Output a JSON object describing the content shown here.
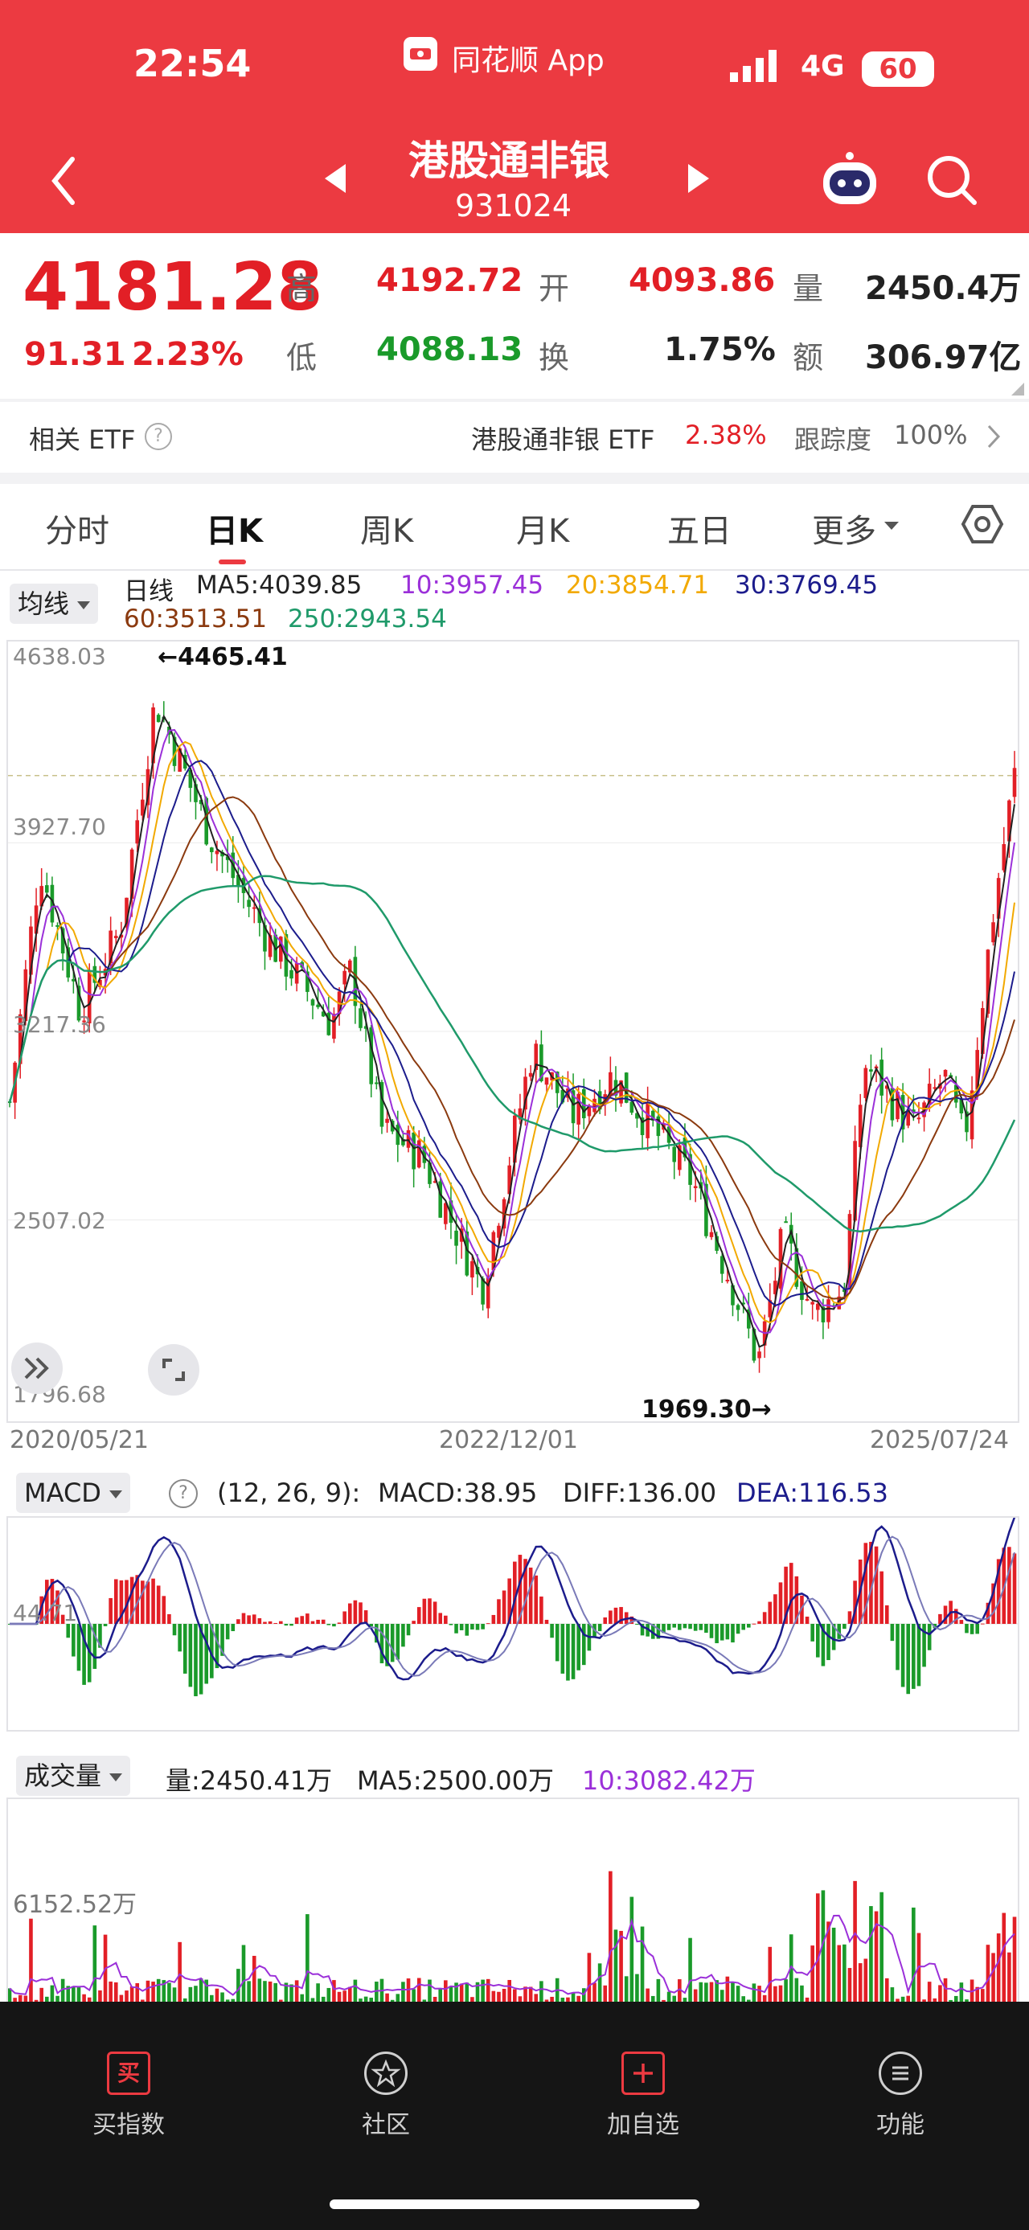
{
  "status_bar": {
    "time": "22:54",
    "app_name": "同花顺 App",
    "network": "4G",
    "battery": "60"
  },
  "header": {
    "title": "港股通非银",
    "code": "931024"
  },
  "quote": {
    "price": "4181.28",
    "change": "91.31",
    "change_pct": "2.23%",
    "high_label": "高",
    "high": "4192.72",
    "open_label": "开",
    "open": "4093.86",
    "volume_label": "量",
    "volume": "2450.4万",
    "low_label": "低",
    "low": "4088.13",
    "turnover_label": "换",
    "turnover": "1.75%",
    "amount_label": "额",
    "amount": "306.97亿"
  },
  "etf": {
    "label": "相关 ETF",
    "name": "港股通非银 ETF",
    "pct": "2.38%",
    "tracking_label": "跟踪度",
    "tracking": "100%"
  },
  "tabs": [
    "分时",
    "日K",
    "周K",
    "月K",
    "五日",
    "更多"
  ],
  "active_tab": "日K",
  "ma_legend": {
    "selector": "均线",
    "line_type": "日线",
    "ma5": "MA5:4039.85",
    "ma10": "10:3957.45",
    "ma20": "20:3854.71",
    "ma30": "30:3769.45",
    "ma60": "60:3513.51",
    "ma250": "250:2943.54"
  },
  "colors": {
    "up": "#e21f26",
    "down": "#1a9a2a",
    "ma5": "#222222",
    "ma10": "#9b30d9",
    "ma20": "#f2a900",
    "ma30": "#1c1c8c",
    "ma60": "#8b3a0f",
    "ma250": "#1f9a6a"
  },
  "kline": {
    "y_ticks": [
      "4638.03",
      "3927.70",
      "3217.36",
      "2507.02",
      "1796.68"
    ],
    "max_label": "←4465.41",
    "min_label": "1969.30→",
    "dates": [
      "2020/05/21",
      "2022/12/01",
      "2025/07/24"
    ]
  },
  "macd": {
    "selector": "MACD",
    "params": "(12, 26, 9):",
    "macd": "MACD:38.95",
    "diff": "DIFF:136.00",
    "dea": "DEA:116.53",
    "y_tick": "44.71"
  },
  "volume": {
    "selector": "成交量",
    "vol": "量:2450.41万",
    "ma5": "MA5:2500.00万",
    "ma10": "10:3082.42万",
    "y_tick": "6152.52万"
  },
  "bottom_nav": [
    "买指数",
    "社区",
    "加自选",
    "功能"
  ],
  "chart_data": {
    "type": "line",
    "title": "",
    "x": [
      "2020/05/21",
      "2022/12/01",
      "2025/07/24"
    ],
    "series": [],
    "ylim": [
      1796.68,
      4638.03
    ],
    "high": 4465.41,
    "low": 1969.3,
    "last": 4181.28
  }
}
